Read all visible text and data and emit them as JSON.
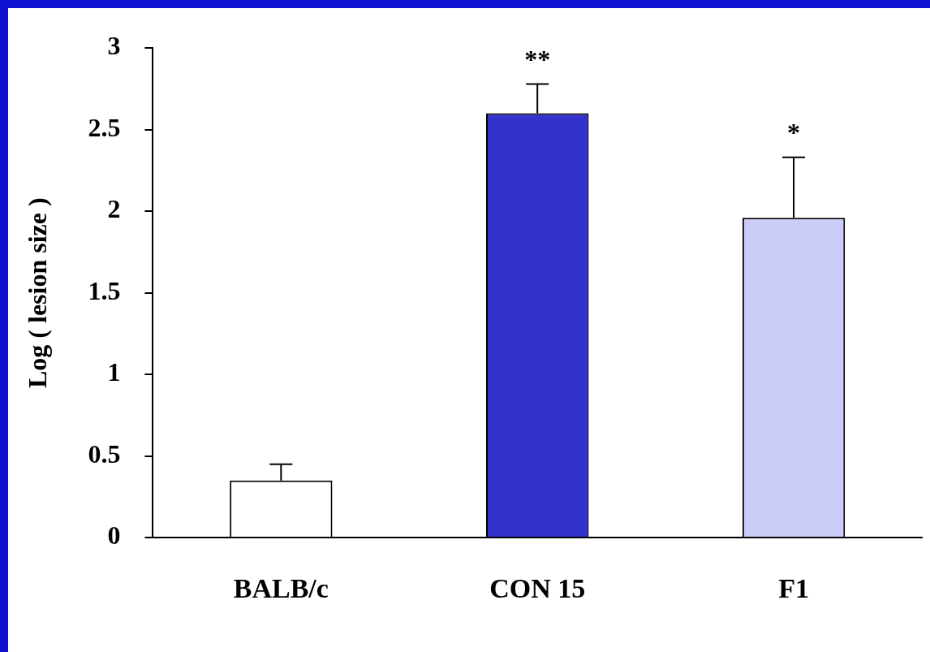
{
  "chart_data": {
    "type": "bar",
    "ylabel": "Log ( lesion size )",
    "categories": [
      "BALB/c",
      "CON 15",
      "F1"
    ],
    "values": [
      0.35,
      2.6,
      1.96
    ],
    "colors": [
      "#ffffff",
      "#3333cc",
      "#ccccf8"
    ],
    "errors": [
      [
        0.35,
        0.45
      ],
      [
        2.6,
        2.78
      ],
      [
        1.96,
        2.33
      ]
    ],
    "ylim": [
      0,
      3
    ],
    "yticks": [
      0,
      0.5,
      1,
      1.5,
      2,
      2.5,
      3
    ],
    "grid": false,
    "legend": false,
    "annotations": [
      "**",
      "*"
    ]
  }
}
